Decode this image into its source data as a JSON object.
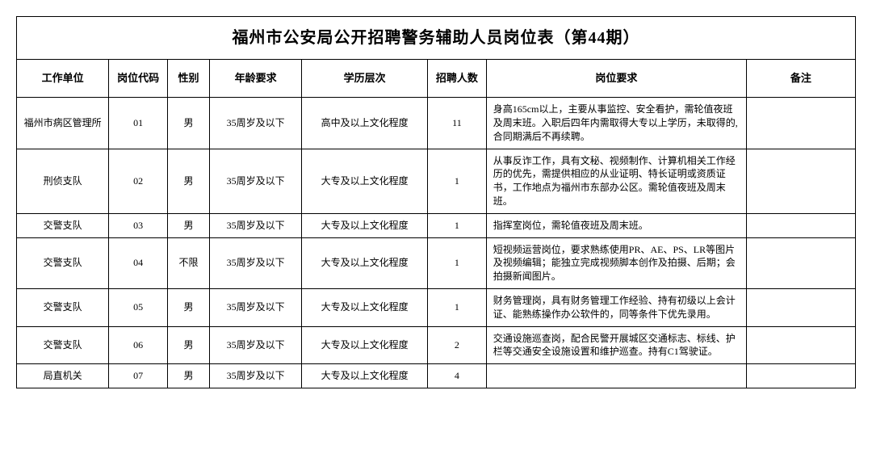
{
  "title": "福州市公安局公开招聘警务辅助人员岗位表（第44期）",
  "headers": {
    "unit": "工作单位",
    "code": "岗位代码",
    "gender": "性别",
    "age": "年龄要求",
    "edu": "学历层次",
    "count": "招聘人数",
    "req": "岗位要求",
    "remark": "备注"
  },
  "rows": [
    {
      "unit": "福州市病区管理所",
      "code": "01",
      "gender": "男",
      "age": "35周岁及以下",
      "edu": "高中及以上文化程度",
      "count": "11",
      "req": "身高165cm以上，主要从事监控、安全看护，需轮值夜班及周末班。入职后四年内需取得大专以上学历，未取得的,合同期满后不再续聘。",
      "remark": ""
    },
    {
      "unit": "刑侦支队",
      "code": "02",
      "gender": "男",
      "age": "35周岁及以下",
      "edu": "大专及以上文化程度",
      "count": "1",
      "req": "从事反诈工作，具有文秘、视频制作、计算机相关工作经历的优先，需提供相应的从业证明、特长证明或资质证书，工作地点为福州市东部办公区。需轮值夜班及周末班。",
      "remark": ""
    },
    {
      "unit": "交警支队",
      "code": "03",
      "gender": "男",
      "age": "35周岁及以下",
      "edu": "大专及以上文化程度",
      "count": "1",
      "req": "指挥室岗位，需轮值夜班及周末班。",
      "remark": ""
    },
    {
      "unit": "交警支队",
      "code": "04",
      "gender": "不限",
      "age": "35周岁及以下",
      "edu": "大专及以上文化程度",
      "count": "1",
      "req": "短视频运营岗位，要求熟练使用PR、AE、PS、LR等图片及视频编辑；能独立完成视频脚本创作及拍摄、后期；会拍摄新闻图片。",
      "remark": ""
    },
    {
      "unit": "交警支队",
      "code": "05",
      "gender": "男",
      "age": "35周岁及以下",
      "edu": "大专及以上文化程度",
      "count": "1",
      "req": "财务管理岗，具有财务管理工作经验、持有初级以上会计证、能熟练操作办公软件的，同等条件下优先录用。",
      "remark": ""
    },
    {
      "unit": "交警支队",
      "code": "06",
      "gender": "男",
      "age": "35周岁及以下",
      "edu": "大专及以上文化程度",
      "count": "2",
      "req": "交通设施巡查岗，配合民警开展城区交通标志、标线、护栏等交通安全设施设置和维护巡查。持有C1驾驶证。",
      "remark": ""
    },
    {
      "unit": "局直机关",
      "code": "07",
      "gender": "男",
      "age": "35周岁及以下",
      "edu": "大专及以上文化程度",
      "count": "4",
      "req": "",
      "remark": ""
    }
  ]
}
